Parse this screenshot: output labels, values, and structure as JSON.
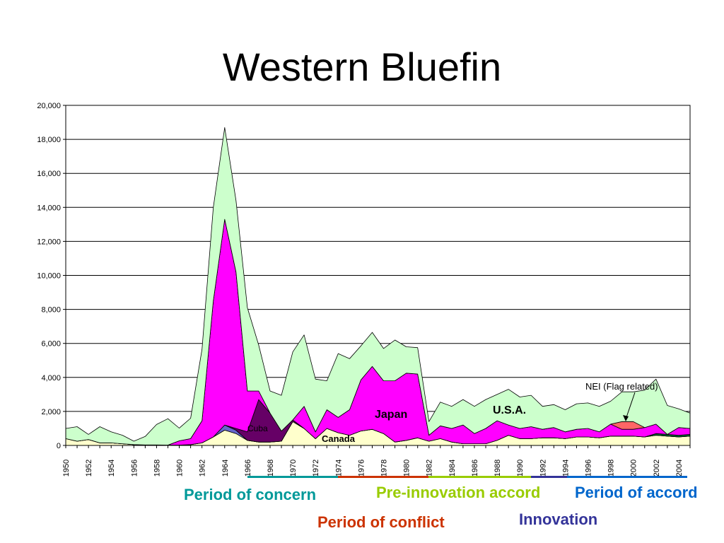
{
  "slide": {
    "title": "Western Bluefin"
  },
  "chart_data": {
    "type": "area",
    "stacked": true,
    "ylim": [
      0,
      20000
    ],
    "xlim": [
      1950,
      2005
    ],
    "y_ticks": [
      "0",
      "2,000",
      "4,000",
      "6,000",
      "8,000",
      "10,000",
      "12,000",
      "14,000",
      "16,000",
      "18,000",
      "20,000"
    ],
    "x_ticks": [
      "1950",
      "1952",
      "1954",
      "1956",
      "1958",
      "1960",
      "1962",
      "1964",
      "1966",
      "1968",
      "1970",
      "1972",
      "1974",
      "1976",
      "1978",
      "1980",
      "1982",
      "1984",
      "1986",
      "1988",
      "1990",
      "1992",
      "1994",
      "1996",
      "1998",
      "2000",
      "2002",
      "2004"
    ],
    "grid": true,
    "x": [
      1950,
      1951,
      1952,
      1953,
      1954,
      1955,
      1956,
      1957,
      1958,
      1959,
      1960,
      1961,
      1962,
      1963,
      1964,
      1965,
      1966,
      1967,
      1968,
      1969,
      1970,
      1971,
      1972,
      1973,
      1974,
      1975,
      1976,
      1977,
      1978,
      1979,
      1980,
      1981,
      1982,
      1983,
      1984,
      1985,
      1986,
      1987,
      1988,
      1989,
      1990,
      1991,
      1992,
      1993,
      1994,
      1995,
      1996,
      1997,
      1998,
      1999,
      2000,
      2001,
      2002,
      2003,
      2004,
      2005
    ],
    "series": [
      {
        "name": "Canada",
        "color": "#FFFFCC",
        "values": [
          400,
          250,
          350,
          150,
          150,
          100,
          50,
          30,
          30,
          20,
          20,
          50,
          150,
          500,
          900,
          700,
          300,
          200,
          200,
          250,
          1400,
          1000,
          400,
          1000,
          750,
          600,
          850,
          950,
          700,
          200,
          300,
          450,
          250,
          400,
          200,
          100,
          100,
          100,
          300,
          600,
          400,
          400,
          450,
          450,
          400,
          500,
          500,
          450,
          550,
          550,
          550,
          500,
          600,
          550,
          500,
          550
        ]
      },
      {
        "name": "",
        "color": "#6666CC",
        "values": [
          0,
          0,
          0,
          0,
          0,
          0,
          0,
          0,
          0,
          0,
          0,
          0,
          0,
          0,
          300,
          200,
          0,
          0,
          0,
          0,
          0,
          0,
          0,
          0,
          0,
          0,
          0,
          0,
          0,
          0,
          0,
          0,
          0,
          0,
          0,
          0,
          0,
          0,
          0,
          0,
          0,
          0,
          0,
          0,
          0,
          0,
          0,
          0,
          0,
          0,
          0,
          0,
          0,
          0,
          0,
          0
        ]
      },
      {
        "name": "",
        "color": "#006633",
        "values": [
          0,
          0,
          0,
          0,
          0,
          0,
          0,
          0,
          0,
          0,
          0,
          0,
          0,
          0,
          0,
          0,
          0,
          0,
          0,
          0,
          0,
          0,
          0,
          0,
          0,
          0,
          0,
          0,
          0,
          0,
          0,
          0,
          0,
          0,
          0,
          0,
          0,
          0,
          0,
          0,
          0,
          0,
          0,
          0,
          0,
          0,
          0,
          0,
          0,
          0,
          0,
          0,
          100,
          100,
          100,
          100
        ]
      },
      {
        "name": "Cuba",
        "color": "#660066",
        "values": [
          0,
          0,
          0,
          0,
          0,
          0,
          0,
          0,
          0,
          0,
          0,
          0,
          0,
          0,
          0,
          100,
          500,
          2500,
          1700,
          600,
          100,
          0,
          0,
          0,
          0,
          0,
          0,
          0,
          0,
          0,
          0,
          0,
          0,
          0,
          0,
          0,
          0,
          0,
          0,
          0,
          0,
          0,
          0,
          0,
          0,
          0,
          0,
          0,
          0,
          0,
          0,
          0,
          0,
          0,
          0,
          0
        ]
      },
      {
        "name": "Japan",
        "color": "#FF00FF",
        "values": [
          0,
          0,
          0,
          0,
          0,
          0,
          0,
          0,
          0,
          0,
          250,
          350,
          1300,
          8000,
          12100,
          9200,
          2400,
          500,
          0,
          0,
          0,
          1300,
          400,
          1100,
          900,
          1500,
          3000,
          3700,
          3100,
          3600,
          3950,
          3750,
          350,
          750,
          800,
          1100,
          600,
          900,
          1150,
          600,
          600,
          700,
          500,
          600,
          400,
          450,
          500,
          350,
          700,
          400,
          400,
          550,
          550,
          0,
          450,
          350
        ]
      },
      {
        "name": "NEI (Flag related)",
        "color": "#FF6666",
        "values": [
          0,
          0,
          0,
          0,
          0,
          0,
          0,
          0,
          0,
          0,
          0,
          0,
          0,
          0,
          0,
          0,
          0,
          0,
          0,
          0,
          0,
          0,
          0,
          0,
          0,
          0,
          0,
          0,
          0,
          0,
          0,
          0,
          0,
          0,
          0,
          0,
          0,
          0,
          0,
          0,
          0,
          0,
          0,
          0,
          0,
          0,
          0,
          0,
          0,
          450,
          450,
          0,
          0,
          0,
          0,
          0
        ]
      },
      {
        "name": "U.S.A.",
        "color": "#CCFFCC",
        "values": [
          600,
          850,
          300,
          950,
          650,
          500,
          200,
          500,
          1200,
          1550,
          750,
          1200,
          4200,
          5500,
          5400,
          4200,
          4900,
          2700,
          1300,
          2100,
          4000,
          4200,
          3100,
          1700,
          3750,
          3000,
          2000,
          2000,
          1900,
          2400,
          1550,
          1550,
          800,
          1400,
          1300,
          1500,
          1600,
          1700,
          1550,
          2100,
          1850,
          1850,
          1350,
          1350,
          1300,
          1500,
          1500,
          1500,
          1350,
          1750,
          1750,
          2200,
          2650,
          1700,
          1100,
          900
        ]
      }
    ],
    "annotations": [
      {
        "text": "Japan"
      },
      {
        "text": "U.S.A."
      },
      {
        "text": "Cuba"
      },
      {
        "text": "Canada"
      },
      {
        "text": "NEI (Flag related)"
      }
    ]
  },
  "periods": [
    {
      "label": "Period of concern",
      "color": "#009999"
    },
    {
      "label": "Period of conflict",
      "color": "#CC3300"
    },
    {
      "label": "Pre-innovation accord",
      "color": "#99CC00"
    },
    {
      "label": "Innovation",
      "color": "#333399"
    },
    {
      "label": "Period of accord",
      "color": "#0066CC"
    }
  ]
}
